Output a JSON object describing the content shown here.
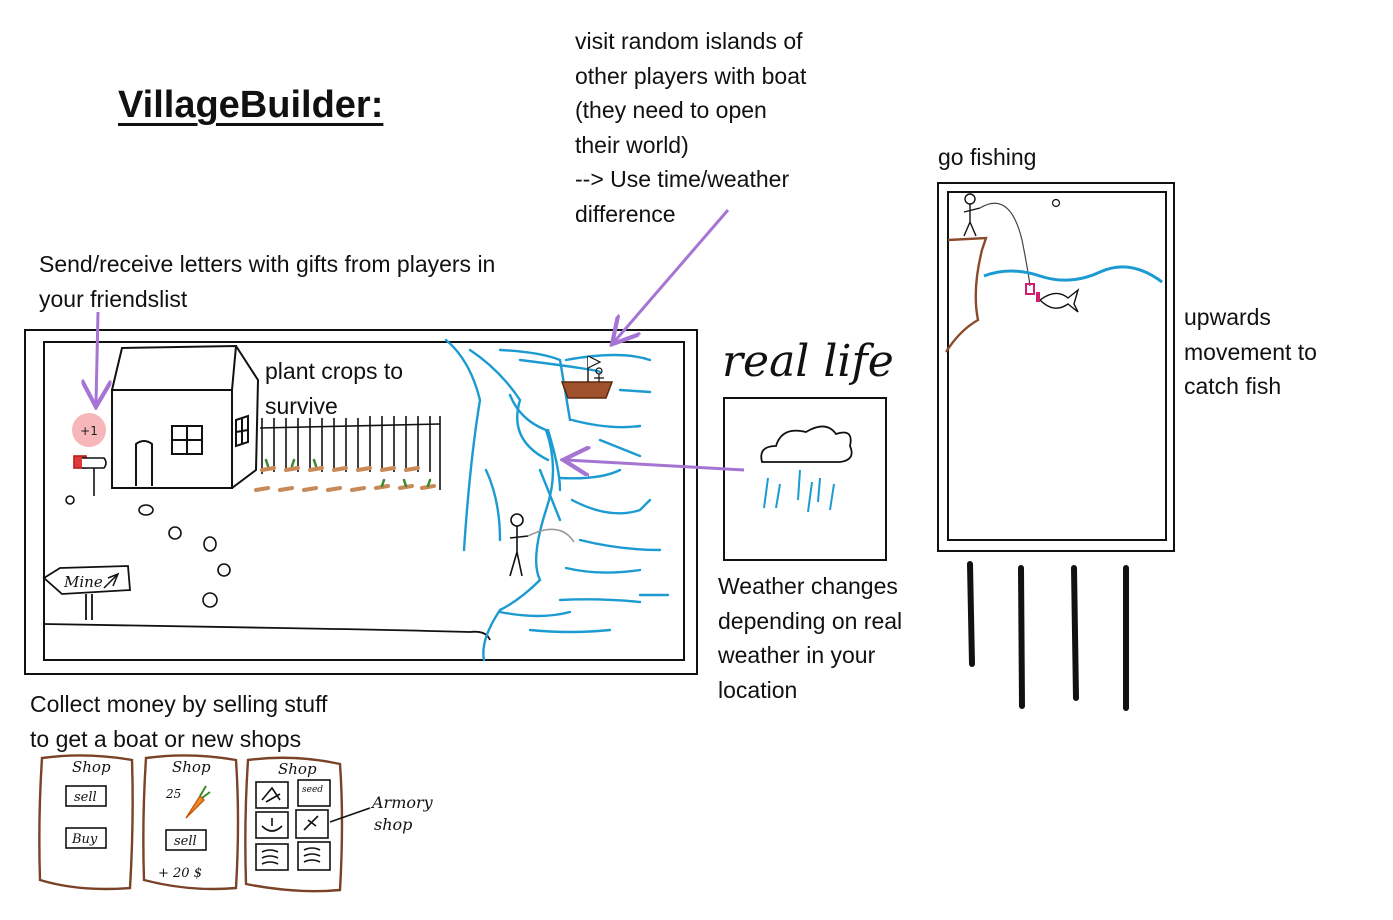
{
  "title": "VillageBuilder:",
  "notes": {
    "visit_islands": "visit random islands of\nother players with boat\n(they need to open\ntheir world)\n--> Use time/weather\ndifference",
    "letters": "Send/receive letters with gifts from players in\nyour friendslist",
    "crops": "plant crops to\nsurvive",
    "fishing": "go fishing",
    "upwards": "upwards\nmovement to\ncatch fish",
    "weather": "Weather changes\ndepending on real\nweather in your\nlocation",
    "money": "Collect money by selling stuff\nto get a boat or new shops"
  },
  "sketch": {
    "real_life": "real life",
    "sign": "Mine",
    "gift_badge": "+1"
  },
  "shops": {
    "shop1": {
      "title": "Shop",
      "sell": "sell",
      "buy": "Buy"
    },
    "shop2": {
      "title": "Shop",
      "price": "25",
      "sell": "sell",
      "gain": "+ 20 $"
    },
    "shop3": {
      "title": "Shop",
      "seed": "seed"
    },
    "armory_label": "Armory\nshop"
  },
  "colors": {
    "arrow": "#a675d4",
    "water": "#1b9bd1",
    "wood": "#8b4a2b",
    "shop_border": "#7a4226"
  }
}
